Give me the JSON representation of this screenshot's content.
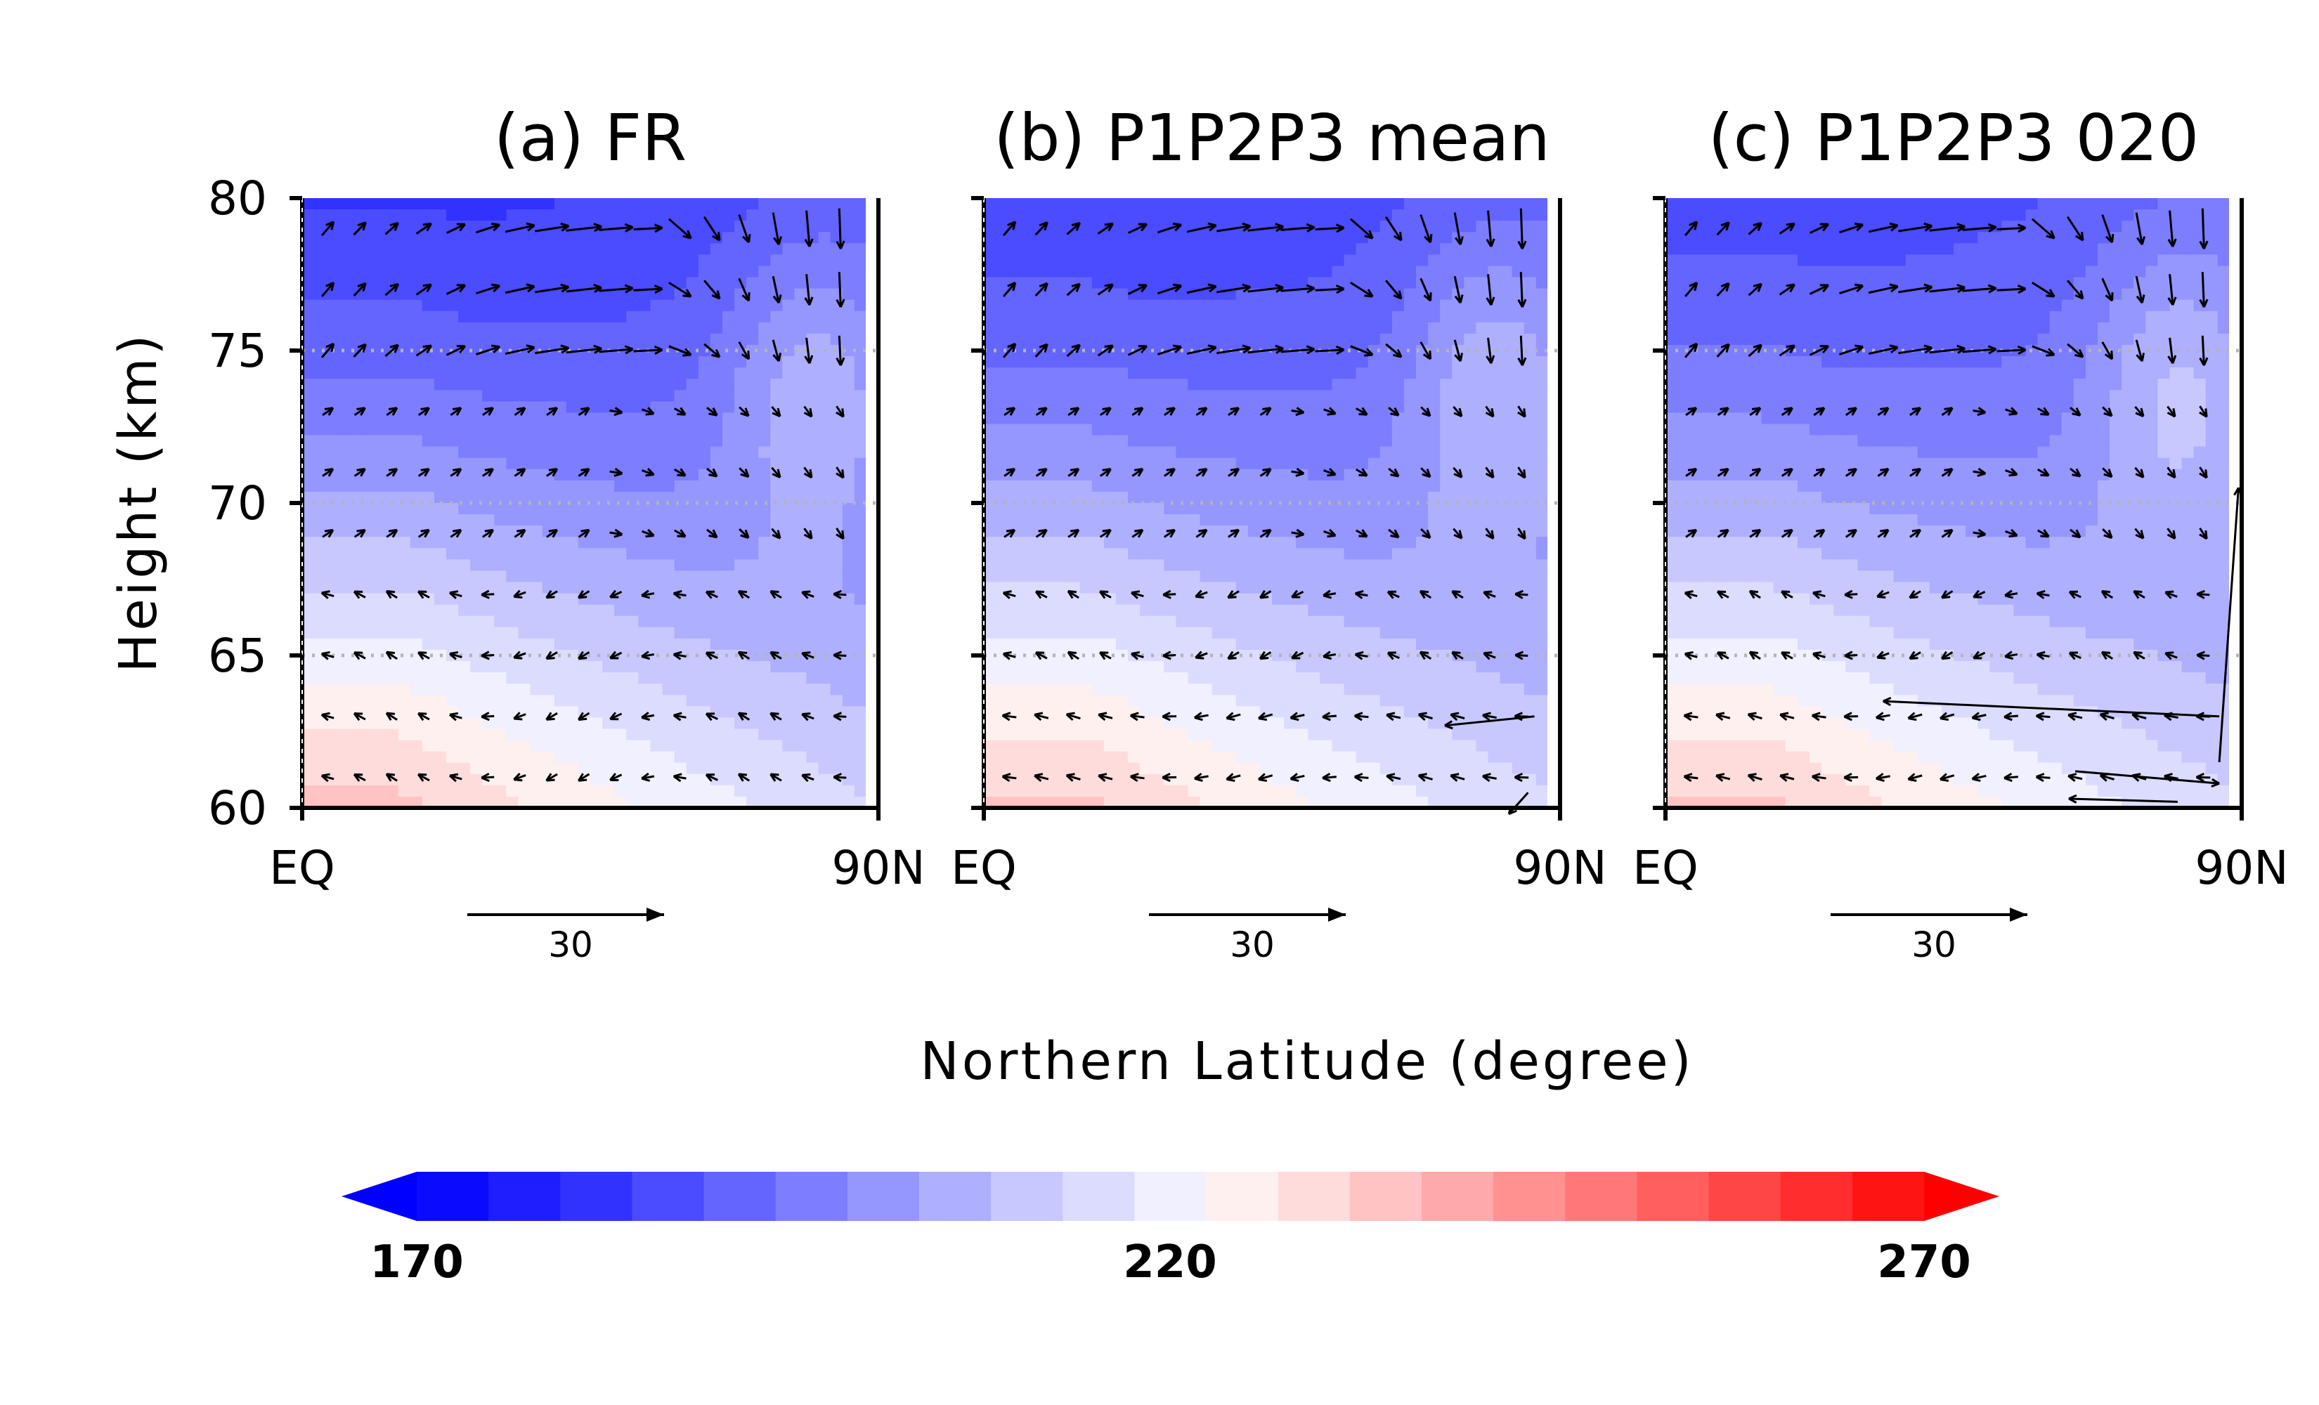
{
  "chart_data": [
    {
      "type": "heatmap",
      "title": "(a) FR",
      "ylabel": "Height (km)",
      "xlabel": "Northern Latitude (degree)",
      "x_ticks": [
        "EQ",
        "90N"
      ],
      "y_ticks": [
        60,
        65,
        70,
        75,
        80
      ],
      "ylim": [
        60,
        80
      ],
      "xlim": [
        0,
        90
      ],
      "reference_vector": "30",
      "grid": "dotted horizontal lines at 65, 70, 75 km"
    },
    {
      "type": "heatmap",
      "title": "(b) P1P2P3 mean",
      "ylabel": "Height (km)",
      "xlabel": "Northern Latitude (degree)",
      "x_ticks": [
        "EQ",
        "90N"
      ],
      "y_ticks": [
        60,
        65,
        70,
        75,
        80
      ],
      "ylim": [
        60,
        80
      ],
      "xlim": [
        0,
        90
      ],
      "reference_vector": "30",
      "grid": "dotted horizontal lines at 65, 70, 75 km"
    },
    {
      "type": "heatmap",
      "title": "(c) P1P2P3 020",
      "ylabel": "Height (km)",
      "xlabel": "Northern Latitude (degree)",
      "x_ticks": [
        "EQ",
        "90N"
      ],
      "y_ticks": [
        60,
        65,
        70,
        75,
        80
      ],
      "ylim": [
        60,
        80
      ],
      "xlim": [
        0,
        90
      ],
      "reference_vector": "30",
      "grid": "dotted horizontal lines at 65, 70, 75 km"
    }
  ],
  "figure": {
    "ylabel": "Height (km)",
    "xlabel": "Northern Latitude (degree)"
  },
  "colorbar": {
    "min": 170,
    "max": 270,
    "labels": [
      "170",
      "220",
      "270"
    ],
    "colors": [
      "#0a0aff",
      "#1e1eff",
      "#3232ff",
      "#4b4bff",
      "#6464ff",
      "#7d7dff",
      "#9696ff",
      "#afafff",
      "#c8c8ff",
      "#dcdcff",
      "#f0f0ff",
      "#fff0f0",
      "#ffdcdc",
      "#ffc3c3",
      "#ffaaaa",
      "#ff9191",
      "#ff7878",
      "#ff5f5f",
      "#ff4646",
      "#ff2d2d",
      "#ff1414"
    ],
    "low_color": "#0000ff",
    "high_color": "#ff0000"
  }
}
